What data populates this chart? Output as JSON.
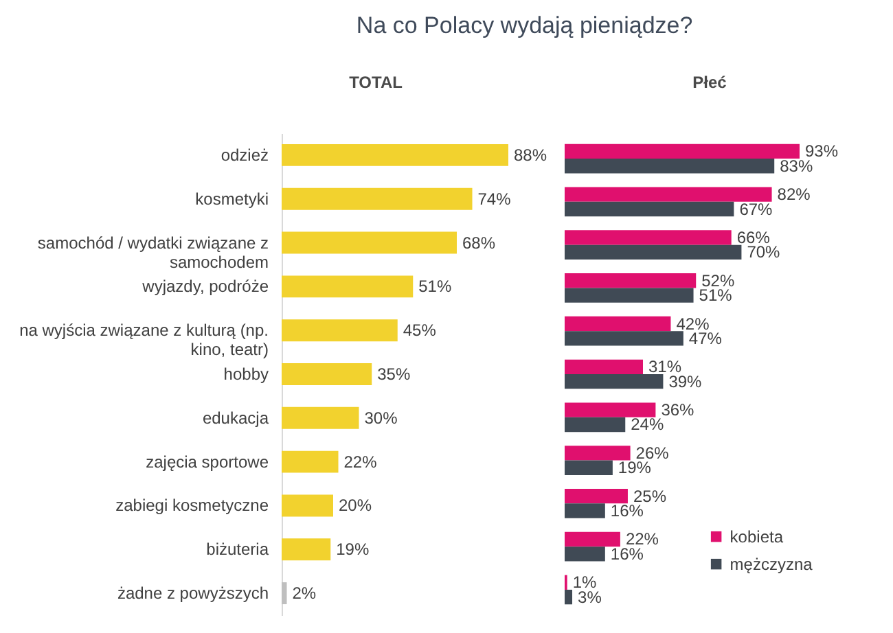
{
  "chart_data": [
    {
      "type": "bar",
      "orientation": "horizontal",
      "title": "Na co Polacy wydają pieniądze?",
      "subtitle": "TOTAL",
      "categories": [
        "odzież",
        "kosmetyki",
        "samochód / wydatki związane z samochodem",
        "wyjazdy, podróże",
        "na wyjścia związane z kulturą (np. kino, teatr)",
        "hobby",
        "edukacja",
        "zajęcia sportowe",
        "zabiegi kosmetyczne",
        "biżuteria",
        "żadne z powyższych"
      ],
      "values": [
        88,
        74,
        68,
        51,
        45,
        35,
        30,
        22,
        20,
        19,
        2
      ],
      "colors": [
        "#f2d22e",
        "#f2d22e",
        "#f2d22e",
        "#f2d22e",
        "#f2d22e",
        "#f2d22e",
        "#f2d22e",
        "#f2d22e",
        "#f2d22e",
        "#f2d22e",
        "#bfbfbf"
      ],
      "value_labels": [
        "88%",
        "74%",
        "68%",
        "51%",
        "45%",
        "35%",
        "30%",
        "22%",
        "20%",
        "19%",
        "2%"
      ]
    },
    {
      "type": "bar",
      "orientation": "horizontal",
      "subtitle": "Płeć",
      "tick_labels": false,
      "legend": "bottom right",
      "categories": [
        null,
        null,
        null,
        null,
        null,
        null,
        null,
        null,
        null,
        null,
        null
      ],
      "series": [
        {
          "name": "kobieta",
          "color": "#e0106e",
          "values": [
            93,
            82,
            66,
            52,
            42,
            31,
            36,
            26,
            25,
            22,
            1
          ],
          "value_labels": [
            "93%",
            "82%",
            "66%",
            "52%",
            "42%",
            "31%",
            "36%",
            "26%",
            "25%",
            "22%",
            "1%"
          ]
        },
        {
          "name": "mężczyzna",
          "color": "#404a55",
          "values": [
            83,
            67,
            70,
            51,
            47,
            39,
            24,
            19,
            16,
            16,
            3
          ],
          "value_labels": [
            "83%",
            "67%",
            "70%",
            "51%",
            "47%",
            "39%",
            "24%",
            "19%",
            "16%",
            "16%",
            "3%"
          ]
        }
      ]
    }
  ]
}
